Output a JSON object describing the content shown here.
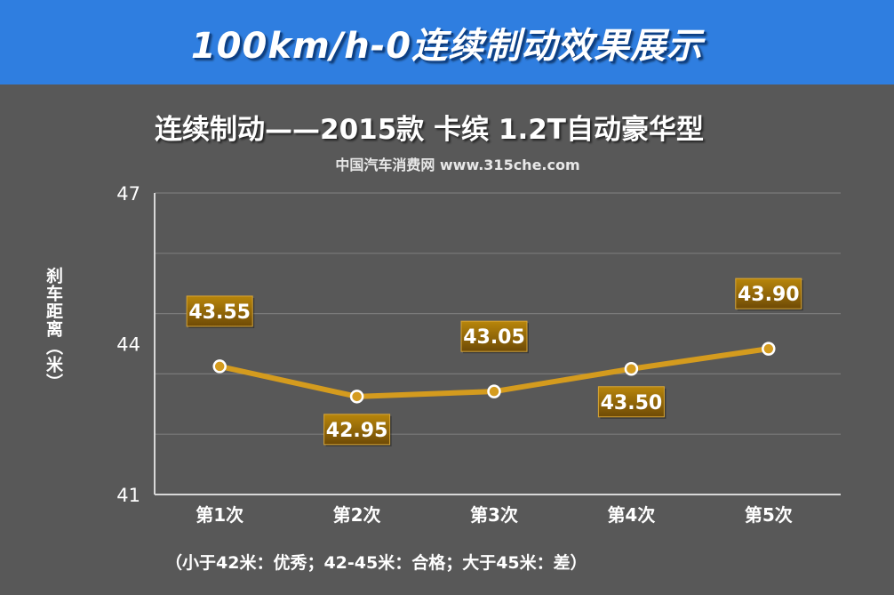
{
  "header": {
    "title": "100km/h-0连续制动效果展示"
  },
  "subtitle": "中国汽车消费网 www.315che.com",
  "footnote": "（小于42米：优秀；42-45米：合格；大于45米：差）",
  "colors": {
    "banner": "#2f7ee0",
    "background": "#585858",
    "line": "#d49b1e",
    "label_box": "#b8860b"
  },
  "chart_data": {
    "type": "line",
    "title": "连续制动——2015款 卡缤 1.2T自动豪华型",
    "xlabel": "",
    "ylabel": "刹车距离（米）",
    "categories": [
      "第1次",
      "第2次",
      "第3次",
      "第4次",
      "第5次"
    ],
    "values": [
      43.55,
      42.95,
      43.05,
      43.5,
      43.9
    ],
    "data_labels": [
      "43.55",
      "42.95",
      "43.05",
      "43.50",
      "43.90"
    ],
    "label_positions": [
      "above",
      "below",
      "above",
      "below",
      "above"
    ],
    "ylim": [
      41,
      47
    ],
    "yticks": [
      41,
      44,
      47
    ],
    "grid": true,
    "legend": "none"
  }
}
